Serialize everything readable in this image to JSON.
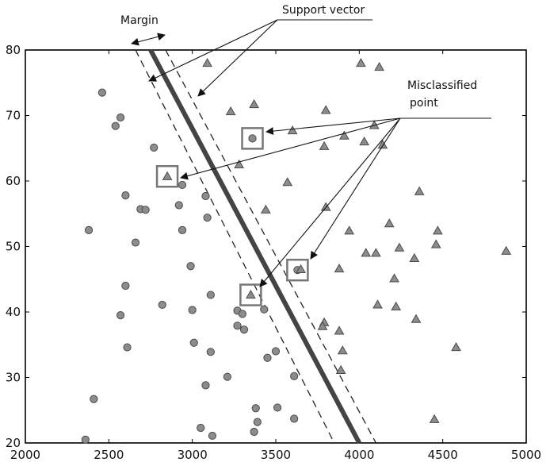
{
  "chart_data": {
    "type": "scatter",
    "title": "",
    "xlabel": "",
    "ylabel": "",
    "xlim": [
      2000,
      5000
    ],
    "ylim": [
      20,
      80
    ],
    "xticks": [
      2000,
      2500,
      3000,
      3500,
      4000,
      4500,
      5000
    ],
    "yticks": [
      20,
      30,
      40,
      50,
      60,
      70,
      80
    ],
    "grid": false,
    "series": [
      {
        "marker": "circle",
        "color": "#8c8c8c",
        "points": [
          [
            2460,
            73.5
          ],
          [
            2570,
            69.7
          ],
          [
            2540,
            68.4
          ],
          [
            2770,
            65.1
          ],
          [
            3360,
            66.5
          ],
          [
            2600,
            57.8
          ],
          [
            2940,
            59.4
          ],
          [
            3080,
            57.7
          ],
          [
            2690,
            55.7
          ],
          [
            2720,
            55.6
          ],
          [
            2920,
            56.3
          ],
          [
            3090,
            54.4
          ],
          [
            2380,
            52.5
          ],
          [
            2940,
            52.5
          ],
          [
            2660,
            50.6
          ],
          [
            3630,
            46.4
          ],
          [
            2990,
            47.0
          ],
          [
            2600,
            44.0
          ],
          [
            3110,
            42.6
          ],
          [
            2820,
            41.1
          ],
          [
            2570,
            39.5
          ],
          [
            3000,
            40.3
          ],
          [
            3270,
            40.2
          ],
          [
            3300,
            39.7
          ],
          [
            3430,
            40.4
          ],
          [
            3270,
            37.9
          ],
          [
            3310,
            37.3
          ],
          [
            2610,
            34.6
          ],
          [
            3010,
            35.3
          ],
          [
            3110,
            33.9
          ],
          [
            3500,
            34.0
          ],
          [
            3450,
            33.0
          ],
          [
            3210,
            30.1
          ],
          [
            3610,
            30.2
          ],
          [
            3080,
            28.8
          ],
          [
            2410,
            26.7
          ],
          [
            3380,
            25.3
          ],
          [
            3510,
            25.4
          ],
          [
            3610,
            23.7
          ],
          [
            3390,
            23.2
          ],
          [
            3050,
            22.3
          ],
          [
            3370,
            21.7
          ],
          [
            3120,
            21.1
          ],
          [
            2360,
            20.5
          ]
        ]
      },
      {
        "marker": "triangle",
        "color": "#8c8c8c",
        "points": [
          [
            3090,
            78.0
          ],
          [
            4010,
            78.0
          ],
          [
            4120,
            77.4
          ],
          [
            3370,
            71.7
          ],
          [
            3230,
            70.6
          ],
          [
            3800,
            70.8
          ],
          [
            4090,
            68.5
          ],
          [
            3600,
            67.7
          ],
          [
            3910,
            66.9
          ],
          [
            3790,
            65.3
          ],
          [
            4030,
            66.0
          ],
          [
            4140,
            65.5
          ],
          [
            3280,
            62.5
          ],
          [
            2850,
            60.7
          ],
          [
            3570,
            59.8
          ],
          [
            4360,
            58.4
          ],
          [
            3440,
            55.6
          ],
          [
            3800,
            56.0
          ],
          [
            4180,
            53.5
          ],
          [
            4470,
            52.4
          ],
          [
            3940,
            52.4
          ],
          [
            4460,
            50.3
          ],
          [
            4240,
            49.8
          ],
          [
            4880,
            49.3
          ],
          [
            4040,
            49.0
          ],
          [
            4100,
            49.0
          ],
          [
            4330,
            48.2
          ],
          [
            3880,
            46.6
          ],
          [
            3650,
            46.5
          ],
          [
            4210,
            45.1
          ],
          [
            3350,
            42.6
          ],
          [
            4110,
            41.1
          ],
          [
            4220,
            40.8
          ],
          [
            4340,
            38.9
          ],
          [
            3790,
            38.4
          ],
          [
            3880,
            37.1
          ],
          [
            3780,
            37.8
          ],
          [
            4580,
            34.6
          ],
          [
            3900,
            34.1
          ],
          [
            3890,
            31.1
          ],
          [
            4450,
            23.6
          ]
        ]
      }
    ],
    "decision_boundary": [
      [
        2750,
        80
      ],
      [
        4000,
        20
      ]
    ],
    "margin_boundaries": [
      [
        [
          2660,
          80
        ],
        [
          3850,
          20
        ]
      ],
      [
        [
          2840,
          80
        ],
        [
          4100,
          20
        ]
      ]
    ],
    "highlighted_points": [
      [
        3360,
        66.5
      ],
      [
        2850,
        60.7
      ],
      [
        3630,
        46.4
      ],
      [
        3350,
        42.6
      ]
    ],
    "annotations": [
      {
        "key": "margin",
        "text": "Margin"
      },
      {
        "key": "support_vector",
        "text": "Support vector"
      },
      {
        "key": "misclassified_1",
        "text": "Misclassified"
      },
      {
        "key": "misclassified_2",
        "text": "point"
      }
    ]
  }
}
